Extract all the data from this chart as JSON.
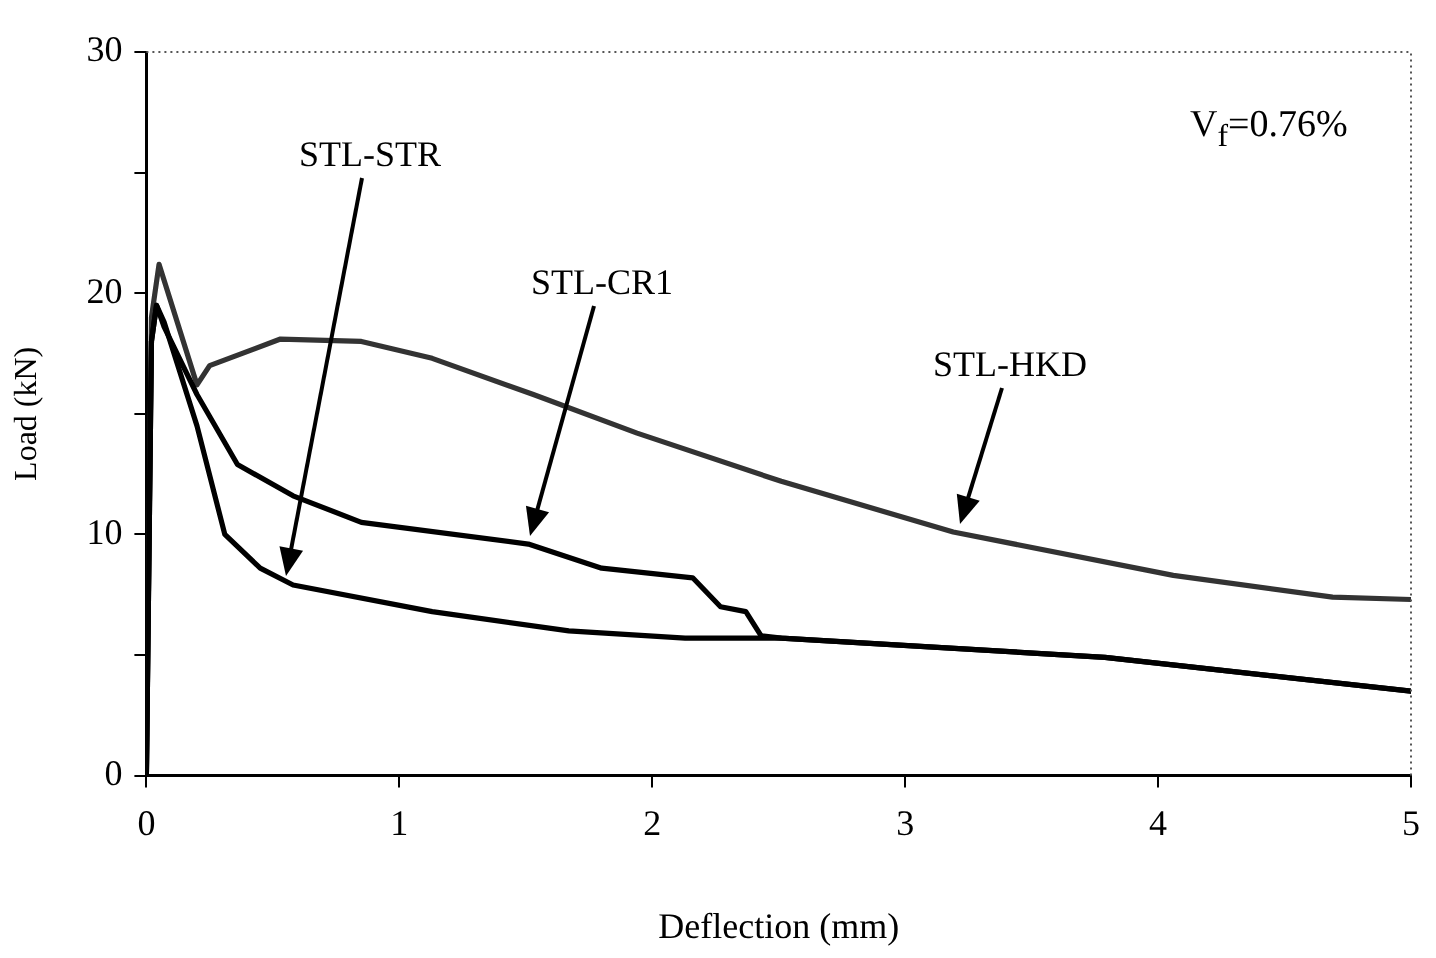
{
  "chart_data": {
    "type": "line",
    "xlabel": "Deflection (mm)",
    "ylabel": "Load (kN)",
    "xlim": [
      0,
      5
    ],
    "xticks": [
      0,
      1,
      2,
      3,
      4,
      5
    ],
    "ylim": [
      0,
      30
    ],
    "yticks": [
      0,
      {
        "value": 5,
        "label": null
      },
      10,
      {
        "value": 15,
        "label": null
      },
      20,
      {
        "value": 25,
        "label": null
      },
      30
    ],
    "grid": false,
    "legend": false,
    "marker": "none",
    "line_style": "solid",
    "series": [
      {
        "color": "#000000",
        "x": [
          0,
          0.02,
          0.04,
          0.07,
          0.2,
          0.31,
          0.45,
          0.58,
          1.13,
          1.67,
          2.13,
          2.51,
          3.79,
          5.0
        ],
        "values": [
          0,
          18,
          19.5,
          18.8,
          14.5,
          10.0,
          8.6,
          7.9,
          6.8,
          6.0,
          5.7,
          5.7,
          4.9,
          3.5
        ]
      },
      {
        "color": "#000000",
        "x": [
          0,
          0.02,
          0.04,
          0.07,
          0.2,
          0.36,
          0.58,
          0.85,
          1.51,
          1.8,
          2.16,
          2.27,
          2.37,
          2.43,
          2.51,
          3.79,
          5.0
        ],
        "values": [
          0,
          18,
          19.5,
          18.6,
          15.8,
          12.9,
          11.6,
          10.5,
          9.6,
          8.6,
          8.2,
          7.0,
          6.8,
          5.8,
          5.7,
          4.9,
          3.5
        ]
      },
      {
        "color": "#333333",
        "x": [
          0,
          0.02,
          0.05,
          0.2,
          0.25,
          0.53,
          0.85,
          1.13,
          1.53,
          1.94,
          2.51,
          3.19,
          4.06,
          4.69,
          5.0
        ],
        "values": [
          0,
          19,
          21.2,
          16.2,
          17.0,
          18.1,
          18.0,
          17.3,
          15.8,
          14.2,
          12.2,
          10.1,
          8.3,
          7.4,
          7.3
        ]
      }
    ],
    "annotations": [
      "STL-STR",
      "STL-CR1",
      "STL-HKD",
      "V$_{f}$=0.76%"
    ]
  }
}
